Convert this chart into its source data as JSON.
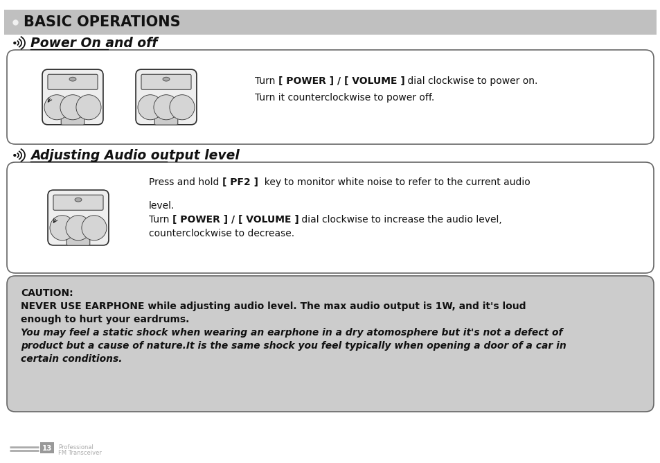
{
  "bg_color": "#ffffff",
  "header_bg": "#c0c0c0",
  "header_text": "BASIC OPERATIONS",
  "section1_title": "Power On and off",
  "section2_title": "Adjusting Audio output level",
  "caution_title": "CAUTION:",
  "caution_line1a": "NEVER USE EARPHONE while adjusting audio level. The max audio output is 1W, and it's loud",
  "caution_line1b": "enough to hurt your eardrums.",
  "caution_line2a": "You may feel a static shock when wearing an earphone in a dry atomosphere but it's not a defect of",
  "caution_line2b": "product but a cause of nature.It is the same shock you feel typically when opening a door of a car in",
  "caution_line2c": "certain conditions.",
  "footer_number": "13",
  "footer_text1": "Professional",
  "footer_text2": "FM Transceiver",
  "box_bg": "#ffffff",
  "box_border": "#666666",
  "caution_bg": "#cccccc",
  "caution_border": "#666666",
  "text_color": "#111111",
  "gray_text": "#999999",
  "header_small_dot": "#f0f0f0"
}
